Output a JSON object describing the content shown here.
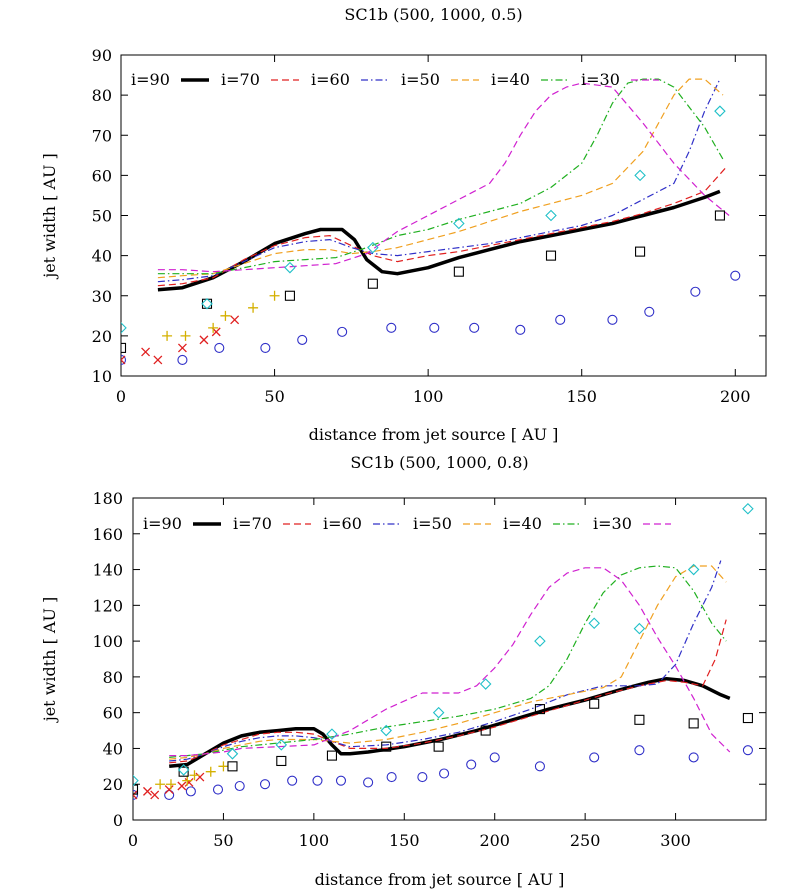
{
  "chart_data": [
    {
      "type": "line",
      "title": "SC1b (500, 1000, 0.5)",
      "xlabel": "distance from jet source [ AU ]",
      "ylabel": "jet width [ AU ]",
      "xlim": [
        0,
        210
      ],
      "ylim": [
        10,
        90
      ],
      "xticks": [
        0,
        50,
        100,
        150,
        200
      ],
      "yticks": [
        10,
        20,
        30,
        40,
        50,
        60,
        70,
        80,
        90
      ],
      "legend": [
        "i=90",
        "i=70",
        "i=60",
        "i=50",
        "i=40",
        "i=30"
      ],
      "series": [
        {
          "name": "i=90",
          "style": "solid-thick",
          "color": "#000000",
          "x": [
            12,
            20,
            30,
            40,
            50,
            60,
            65,
            72,
            76,
            80,
            85,
            90,
            100,
            110,
            120,
            130,
            140,
            150,
            160,
            170,
            180,
            190,
            195
          ],
          "y": [
            31.5,
            32,
            34.5,
            38.5,
            43,
            45.5,
            46.5,
            46.5,
            44,
            39,
            36,
            35.5,
            37,
            39.5,
            41.5,
            43.5,
            45,
            46.5,
            48,
            50,
            52,
            54.5,
            56
          ]
        },
        {
          "name": "i=70",
          "style": "dash",
          "color": "#e02020",
          "x": [
            12,
            20,
            30,
            40,
            50,
            60,
            68,
            75,
            82,
            90,
            100,
            110,
            120,
            130,
            140,
            150,
            160,
            170,
            180,
            190,
            197
          ],
          "y": [
            32.5,
            33,
            34.5,
            39,
            42.5,
            44.5,
            45,
            42.5,
            40,
            38.5,
            40,
            41,
            42.5,
            44,
            45.5,
            47,
            48.5,
            50.5,
            53,
            56,
            62
          ]
        },
        {
          "name": "i=60",
          "style": "dashdot",
          "color": "#3030c8",
          "x": [
            12,
            20,
            30,
            40,
            50,
            60,
            68,
            75,
            82,
            90,
            100,
            110,
            120,
            130,
            140,
            150,
            160,
            170,
            180,
            185,
            190,
            195
          ],
          "y": [
            33.5,
            34,
            35,
            38.5,
            42,
            43.5,
            44,
            42,
            40.5,
            40,
            41,
            42,
            43,
            44.5,
            46,
            47.5,
            50,
            54,
            58,
            66,
            76,
            84
          ]
        },
        {
          "name": "i=50",
          "style": "dash",
          "color": "#f0a020",
          "x": [
            12,
            20,
            30,
            40,
            50,
            60,
            68,
            75,
            82,
            90,
            100,
            110,
            120,
            130,
            140,
            150,
            160,
            170,
            175,
            180,
            185,
            190,
            196
          ],
          "y": [
            34.5,
            35,
            35.5,
            38,
            40.5,
            41.5,
            41.5,
            40.5,
            41,
            42,
            44,
            46,
            48.5,
            51,
            53,
            55,
            58,
            66,
            73,
            80,
            84,
            84,
            80
          ]
        },
        {
          "name": "i=40",
          "style": "dashdot",
          "color": "#20b020",
          "x": [
            12,
            20,
            30,
            40,
            50,
            60,
            70,
            80,
            90,
            100,
            110,
            120,
            130,
            140,
            150,
            155,
            160,
            165,
            170,
            175,
            180,
            190,
            196
          ],
          "y": [
            35.5,
            35.5,
            35.5,
            37,
            38.5,
            39,
            39.5,
            42,
            45,
            46.5,
            49,
            51,
            53,
            57,
            63,
            70,
            78,
            83,
            84,
            84,
            82,
            72,
            64
          ]
        },
        {
          "name": "i=30",
          "style": "dash",
          "color": "#d020d0",
          "x": [
            12,
            20,
            30,
            40,
            50,
            60,
            70,
            80,
            90,
            100,
            110,
            120,
            125,
            130,
            135,
            140,
            145,
            150,
            160,
            170,
            180,
            190,
            198
          ],
          "y": [
            36.5,
            36.5,
            36,
            36.5,
            37,
            37.5,
            38,
            40.5,
            46,
            50,
            54,
            58,
            63,
            70,
            76,
            80,
            82,
            83,
            82,
            73,
            63,
            55,
            50
          ]
        }
      ],
      "points": [
        {
          "marker": "circle",
          "color": "#3030c8",
          "x": [
            0,
            20,
            32,
            47,
            59,
            72,
            88,
            102,
            115,
            130,
            143,
            160,
            172,
            187,
            200
          ],
          "y": [
            14,
            14,
            17,
            17,
            19,
            21,
            22,
            22,
            22,
            21.5,
            24,
            24,
            26,
            31,
            35
          ]
        },
        {
          "marker": "x",
          "color": "#e02020",
          "x": [
            0,
            8,
            12,
            20,
            27,
            31,
            37
          ],
          "y": [
            14,
            16,
            14,
            17,
            19,
            21,
            24
          ]
        },
        {
          "marker": "plus",
          "color": "#d4b000",
          "x": [
            15,
            21,
            30,
            34,
            43,
            50
          ],
          "y": [
            20,
            20,
            22,
            25,
            27,
            30
          ]
        },
        {
          "marker": "square",
          "color": "#000000",
          "x": [
            0,
            28,
            55,
            82,
            110,
            140,
            169,
            195
          ],
          "y": [
            17,
            28,
            30,
            33,
            36,
            40,
            41,
            50
          ]
        },
        {
          "marker": "diamond",
          "color": "#20c0c8",
          "x": [
            0,
            28,
            55,
            82,
            110,
            140,
            169,
            195
          ],
          "y": [
            22,
            28,
            37,
            42,
            48,
            50,
            60,
            76
          ]
        }
      ]
    },
    {
      "type": "line",
      "title": "SC1b (500, 1000, 0.8)",
      "xlabel": "distance from jet source [ AU ]",
      "ylabel": "jet width [ AU ]",
      "xlim": [
        0,
        350
      ],
      "ylim": [
        0,
        180
      ],
      "xticks": [
        0,
        50,
        100,
        150,
        200,
        250,
        300
      ],
      "yticks": [
        0,
        20,
        40,
        60,
        80,
        100,
        120,
        140,
        160,
        180
      ],
      "legend": [
        "i=90",
        "i=70",
        "i=60",
        "i=50",
        "i=40",
        "i=30"
      ],
      "series": [
        {
          "name": "i=90",
          "style": "solid-thick",
          "color": "#000000",
          "x": [
            20,
            30,
            40,
            50,
            60,
            70,
            80,
            90,
            100,
            105,
            110,
            115,
            120,
            130,
            150,
            170,
            190,
            210,
            230,
            250,
            270,
            285,
            295,
            305,
            315,
            325,
            330
          ],
          "y": [
            30,
            31,
            37,
            43,
            47,
            49,
            50,
            51,
            51,
            48,
            42,
            37,
            37,
            38,
            41,
            45,
            50,
            56,
            62,
            67,
            73,
            77,
            79,
            78,
            75,
            70,
            68
          ]
        },
        {
          "name": "i=70",
          "style": "dash",
          "color": "#e02020",
          "x": [
            20,
            30,
            40,
            50,
            60,
            70,
            80,
            90,
            100,
            110,
            120,
            140,
            160,
            180,
            200,
            220,
            240,
            260,
            280,
            295,
            305,
            315,
            322,
            328
          ],
          "y": [
            32,
            33,
            37,
            42,
            45,
            48,
            49,
            49,
            48,
            44,
            40,
            40,
            43,
            47,
            52,
            58,
            64,
            70,
            75,
            78,
            77,
            75,
            90,
            112
          ]
        },
        {
          "name": "i=60",
          "style": "dashdot",
          "color": "#3030c8",
          "x": [
            20,
            30,
            40,
            50,
            60,
            70,
            80,
            90,
            100,
            110,
            120,
            140,
            160,
            180,
            200,
            220,
            240,
            260,
            280,
            290,
            300,
            310,
            320,
            325
          ],
          "y": [
            33,
            34,
            37,
            41,
            44,
            46,
            47,
            47,
            46,
            44,
            41,
            42,
            45,
            49,
            55,
            62,
            70,
            75,
            75,
            76,
            87,
            110,
            130,
            145
          ]
        },
        {
          "name": "i=50",
          "style": "dash",
          "color": "#f0a020",
          "x": [
            20,
            30,
            40,
            50,
            60,
            70,
            80,
            90,
            100,
            110,
            120,
            140,
            160,
            180,
            200,
            220,
            240,
            260,
            270,
            280,
            290,
            300,
            310,
            320,
            328
          ],
          "y": [
            34,
            35,
            37,
            40,
            42,
            44,
            45,
            45,
            45,
            44,
            43,
            45,
            49,
            54,
            60,
            66,
            70,
            74,
            80,
            100,
            120,
            136,
            142,
            142,
            133
          ]
        },
        {
          "name": "i=40",
          "style": "dashdot",
          "color": "#20b020",
          "x": [
            20,
            30,
            40,
            50,
            60,
            80,
            100,
            120,
            140,
            160,
            180,
            200,
            220,
            230,
            240,
            250,
            260,
            270,
            280,
            290,
            300,
            310,
            320,
            328
          ],
          "y": [
            35,
            36,
            37,
            39,
            41,
            43,
            45,
            48,
            52,
            55,
            58,
            62,
            68,
            75,
            90,
            110,
            127,
            137,
            141,
            142,
            141,
            128,
            110,
            100
          ]
        },
        {
          "name": "i=30",
          "style": "dash",
          "color": "#d020d0",
          "x": [
            20,
            30,
            40,
            50,
            60,
            80,
            100,
            120,
            140,
            160,
            170,
            180,
            190,
            200,
            210,
            220,
            230,
            240,
            250,
            260,
            270,
            280,
            290,
            300,
            310,
            320,
            330
          ],
          "y": [
            36,
            36,
            37,
            38,
            40,
            41,
            42,
            50,
            62,
            71,
            71,
            71,
            75,
            85,
            98,
            115,
            130,
            138,
            141,
            141,
            134,
            120,
            102,
            86,
            68,
            48,
            38
          ]
        }
      ],
      "points": [
        {
          "marker": "circle",
          "color": "#3030c8",
          "x": [
            0,
            20,
            32,
            47,
            59,
            73,
            88,
            102,
            115,
            130,
            143,
            160,
            172,
            187,
            200,
            225,
            255,
            280,
            310,
            340
          ],
          "y": [
            14,
            14,
            16,
            17,
            19,
            20,
            22,
            22,
            22,
            21,
            24,
            24,
            26,
            31,
            35,
            30,
            35,
            39,
            35,
            39
          ]
        },
        {
          "marker": "x",
          "color": "#e02020",
          "x": [
            0,
            8,
            12,
            20,
            27,
            31,
            37
          ],
          "y": [
            14,
            16,
            14,
            17,
            19,
            21,
            24
          ]
        },
        {
          "marker": "plus",
          "color": "#d4b000",
          "x": [
            15,
            21,
            30,
            34,
            43,
            50
          ],
          "y": [
            20,
            20,
            22,
            25,
            27,
            30
          ]
        },
        {
          "marker": "square",
          "color": "#000000",
          "x": [
            0,
            28,
            55,
            82,
            110,
            140,
            169,
            195,
            225,
            255,
            280,
            310,
            340
          ],
          "y": [
            17,
            27,
            30,
            33,
            36,
            41,
            41,
            50,
            62,
            65,
            56,
            54,
            57
          ]
        },
        {
          "marker": "diamond",
          "color": "#20c0c8",
          "x": [
            0,
            28,
            55,
            82,
            110,
            140,
            169,
            195,
            225,
            255,
            280,
            310,
            340
          ],
          "y": [
            22,
            28,
            37,
            42,
            48,
            50,
            60,
            76,
            100,
            110,
            107,
            140,
            174
          ]
        }
      ]
    }
  ]
}
